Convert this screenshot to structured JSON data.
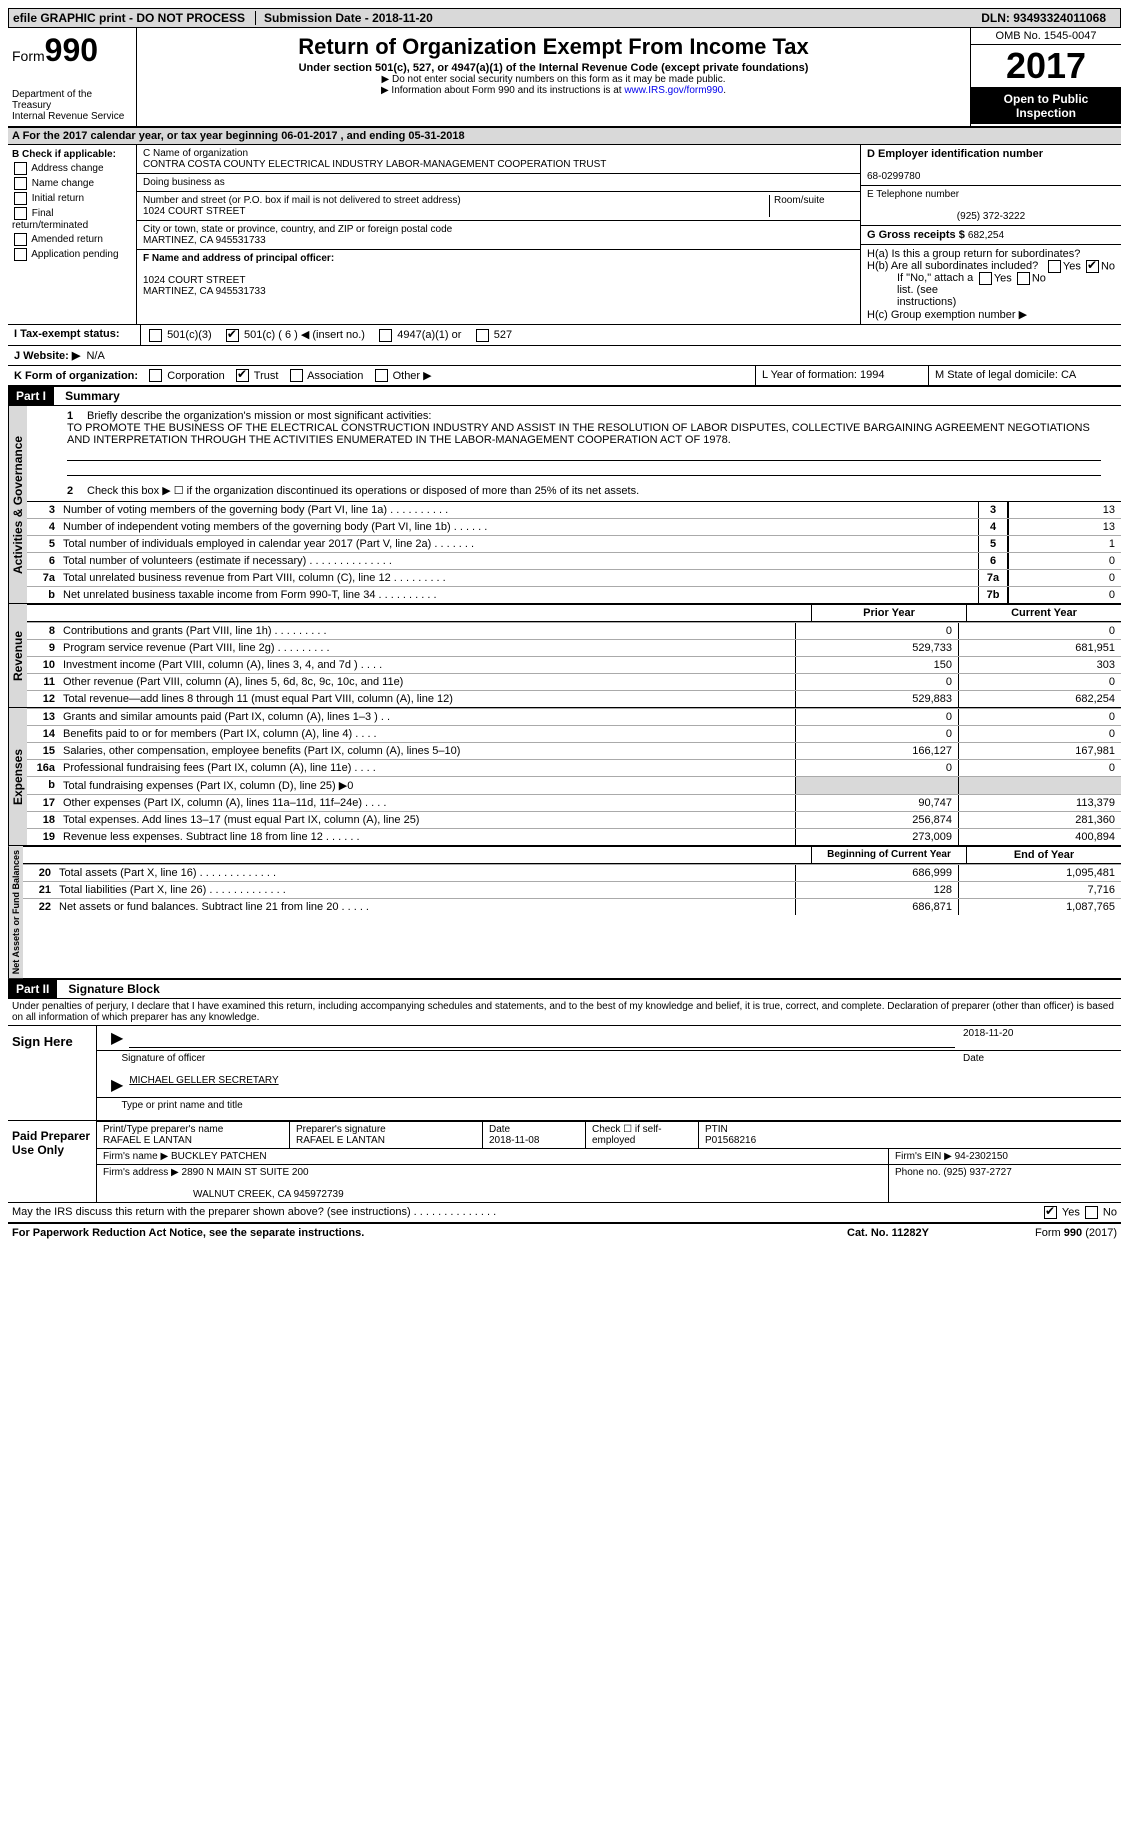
{
  "top": {
    "efile": "efile GRAPHIC print - DO NOT PROCESS",
    "submission_label": "Submission Date - ",
    "submission_date": "2018-11-20",
    "dln_label": "DLN: ",
    "dln": "93493324011068"
  },
  "header": {
    "form_label": "Form",
    "form_num": "990",
    "dept": "Department of the Treasury",
    "irs": "Internal Revenue Service",
    "title": "Return of Organization Exempt From Income Tax",
    "subtitle": "Under section 501(c), 527, or 4947(a)(1) of the Internal Revenue Code (except private foundations)",
    "note1": "▶ Do not enter social security numbers on this form as it may be made public.",
    "note2": "▶ Information about Form 990 and its instructions is at ",
    "link": "www.IRS.gov/form990",
    "omb": "OMB No. 1545-0047",
    "year": "2017",
    "open": "Open to Public Inspection"
  },
  "row_a": "A  For the 2017 calendar year, or tax year beginning 06-01-2017    , and ending 05-31-2018",
  "col_b": {
    "header": "B Check if applicable:",
    "items": [
      "Address change",
      "Name change",
      "Initial return",
      "Final return/terminated",
      "Amended return",
      "Application pending"
    ]
  },
  "col_c": {
    "name_label": "C Name of organization",
    "name": "CONTRA COSTA COUNTY ELECTRICAL INDUSTRY LABOR-MANAGEMENT COOPERATION TRUST",
    "dba_label": "Doing business as",
    "dba": "",
    "street_label": "Number and street (or P.O. box if mail is not delivered to street address)",
    "room_label": "Room/suite",
    "street": "1024 COURT STREET",
    "city_label": "City or town, state or province, country, and ZIP or foreign postal code",
    "city": "MARTINEZ, CA  945531733",
    "f_label": "F Name and address of principal officer:",
    "f_addr1": "1024 COURT STREET",
    "f_addr2": "MARTINEZ, CA  945531733"
  },
  "col_d": {
    "ein_label": "D Employer identification number",
    "ein": "68-0299780",
    "tel_label": "E Telephone number",
    "tel": "(925) 372-3222",
    "gross_label": "G Gross receipts $ ",
    "gross": "682,254"
  },
  "row_h": {
    "ha": "H(a)  Is this a group return for subordinates?",
    "hb": "H(b)  Are all subordinates included?",
    "hb_note": "If \"No,\" attach a list. (see instructions)",
    "hc": "H(c)  Group exemption number ▶"
  },
  "row_i": {
    "label": "I  Tax-exempt status:",
    "opts": [
      "501(c)(3)",
      "501(c) ( 6 ) ◀ (insert no.)",
      "4947(a)(1) or",
      "527"
    ]
  },
  "row_j": {
    "label": "J  Website: ▶",
    "val": "N/A"
  },
  "row_k": {
    "label": "K Form of organization:",
    "opts": [
      "Corporation",
      "Trust",
      "Association",
      "Other ▶"
    ],
    "l": "L Year of formation: 1994",
    "m": "M State of legal domicile: CA"
  },
  "part1": {
    "header": "Part I",
    "title": "Summary",
    "q1_label": "1",
    "q1_text": "Briefly describe the organization's mission or most significant activities:",
    "mission": "TO PROMOTE THE BUSINESS OF THE ELECTRICAL CONSTRUCTION INDUSTRY AND ASSIST IN THE RESOLUTION OF LABOR DISPUTES, COLLECTIVE BARGAINING AGREEMENT NEGOTIATIONS AND INTERPRETATION THROUGH THE ACTIVITIES ENUMERATED IN THE LABOR-MANAGEMENT COOPERATION ACT OF 1978.",
    "q2": "Check this box ▶ ☐  if the organization discontinued its operations or disposed of more than 25% of its net assets.",
    "governance_label": "Activities & Governance",
    "lines_gov": [
      {
        "num": "3",
        "text": "Number of voting members of the governing body (Part VI, line 1a)   .    .    .    .    .    .    .    .    .    .",
        "box": "3",
        "val": "13"
      },
      {
        "num": "4",
        "text": "Number of independent voting members of the governing body (Part VI, line 1b)   .    .    .    .    .    .",
        "box": "4",
        "val": "13"
      },
      {
        "num": "5",
        "text": "Total number of individuals employed in calendar year 2017 (Part V, line 2a)   .    .    .    .    .    .    .",
        "box": "5",
        "val": "1"
      },
      {
        "num": "6",
        "text": "Total number of volunteers (estimate if necessary)   .    .    .    .    .    .    .    .    .    .    .    .    .    .",
        "box": "6",
        "val": "0"
      },
      {
        "num": "7a",
        "text": "Total unrelated business revenue from Part VIII, column (C), line 12   .    .    .    .    .    .    .    .    .",
        "box": "7a",
        "val": "0"
      },
      {
        "num": "b",
        "text": "Net unrelated business taxable income from Form 990-T, line 34   .    .    .    .    .    .    .    .    .    .",
        "box": "7b",
        "val": "0"
      }
    ],
    "revenue_label": "Revenue",
    "col_prior": "Prior Year",
    "col_current": "Current Year",
    "lines_rev": [
      {
        "num": "8",
        "text": "Contributions and grants (Part VIII, line 1h)   .    .    .    .    .    .    .    .    .",
        "v1": "0",
        "v2": "0"
      },
      {
        "num": "9",
        "text": "Program service revenue (Part VIII, line 2g)   .    .    .    .    .    .    .    .    .",
        "v1": "529,733",
        "v2": "681,951"
      },
      {
        "num": "10",
        "text": "Investment income (Part VIII, column (A), lines 3, 4, and 7d )   .    .    .    .",
        "v1": "150",
        "v2": "303"
      },
      {
        "num": "11",
        "text": "Other revenue (Part VIII, column (A), lines 5, 6d, 8c, 9c, 10c, and 11e)",
        "v1": "0",
        "v2": "0"
      },
      {
        "num": "12",
        "text": "Total revenue—add lines 8 through 11 (must equal Part VIII, column (A), line 12)",
        "v1": "529,883",
        "v2": "682,254"
      }
    ],
    "expenses_label": "Expenses",
    "lines_exp": [
      {
        "num": "13",
        "text": "Grants and similar amounts paid (Part IX, column (A), lines 1–3 )   .    .",
        "v1": "0",
        "v2": "0"
      },
      {
        "num": "14",
        "text": "Benefits paid to or for members (Part IX, column (A), line 4)   .    .    .    .",
        "v1": "0",
        "v2": "0"
      },
      {
        "num": "15",
        "text": "Salaries, other compensation, employee benefits (Part IX, column (A), lines 5–10)",
        "v1": "166,127",
        "v2": "167,981"
      },
      {
        "num": "16a",
        "text": "Professional fundraising fees (Part IX, column (A), line 11e)   .    .    .    .",
        "v1": "0",
        "v2": "0"
      },
      {
        "num": "b",
        "text": "Total fundraising expenses (Part IX, column (D), line 25) ▶0",
        "v1": "",
        "v2": "",
        "gray": true
      },
      {
        "num": "17",
        "text": "Other expenses (Part IX, column (A), lines 11a–11d, 11f–24e)   .    .    .    .",
        "v1": "90,747",
        "v2": "113,379"
      },
      {
        "num": "18",
        "text": "Total expenses. Add lines 13–17 (must equal Part IX, column (A), line 25)",
        "v1": "256,874",
        "v2": "281,360"
      },
      {
        "num": "19",
        "text": "Revenue less expenses. Subtract line 18 from line 12   .    .    .    .    .    .",
        "v1": "273,009",
        "v2": "400,894"
      }
    ],
    "net_label": "Net Assets or Fund Balances",
    "col_begin": "Beginning of Current Year",
    "col_end": "End of Year",
    "lines_net": [
      {
        "num": "20",
        "text": "Total assets (Part X, line 16)   .    .    .    .    .    .    .    .    .    .    .    .    .",
        "v1": "686,999",
        "v2": "1,095,481"
      },
      {
        "num": "21",
        "text": "Total liabilities (Part X, line 26)   .    .    .    .    .    .    .    .    .    .    .    .    .",
        "v1": "128",
        "v2": "7,716"
      },
      {
        "num": "22",
        "text": "Net assets or fund balances. Subtract line 21 from line 20   .    .    .    .    .",
        "v1": "686,871",
        "v2": "1,087,765"
      }
    ]
  },
  "part2": {
    "header": "Part II",
    "title": "Signature Block",
    "declaration": "Under penalties of perjury, I declare that I have examined this return, including accompanying schedules and statements, and to the best of my knowledge and belief, it is true, correct, and complete. Declaration of preparer (other than officer) is based on all information of which preparer has any knowledge.",
    "sign_here": "Sign Here",
    "sig_officer": "Signature of officer",
    "sig_date": "2018-11-20",
    "date_label": "Date",
    "officer_name": "MICHAEL GELLER SECRETARY",
    "type_label": "Type or print name and title",
    "paid": "Paid Preparer Use Only",
    "prep_name_label": "Print/Type preparer's name",
    "prep_name": "RAFAEL E LANTAN",
    "prep_sig_label": "Preparer's signature",
    "prep_sig": "RAFAEL E LANTAN",
    "prep_date_label": "Date",
    "prep_date": "2018-11-08",
    "check_label": "Check ☐ if self-employed",
    "ptin_label": "PTIN",
    "ptin": "P01568216",
    "firm_name_label": "Firm's name      ▶",
    "firm_name": "BUCKLEY PATCHEN",
    "firm_ein_label": "Firm's EIN ▶",
    "firm_ein": "94-2302150",
    "firm_addr_label": "Firm's address ▶",
    "firm_addr": "2890 N MAIN ST SUITE 200",
    "firm_city": "WALNUT CREEK, CA  945972739",
    "phone_label": "Phone no.",
    "phone": "(925) 937-2727",
    "discuss": "May the IRS discuss this return with the preparer shown above? (see instructions)   .    .    .    .    .    .    .    .    .    .    .    .    .    .",
    "paperwork": "For Paperwork Reduction Act Notice, see the separate instructions.",
    "cat": "Cat. No. 11282Y",
    "form_footer": "Form 990 (2017)"
  }
}
